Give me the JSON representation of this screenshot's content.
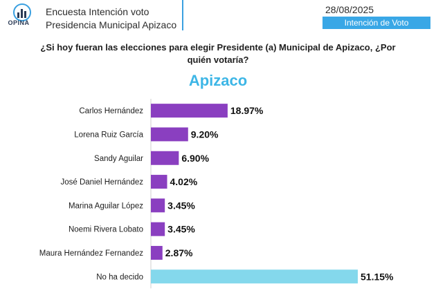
{
  "header": {
    "logo_text": "OPINA",
    "line1": "Encuesta Intención voto",
    "line2": "Presidencia Municipal Apizaco",
    "date": "28/08/2025",
    "badge": "Intención de Voto"
  },
  "question": "¿Si hoy fueran las elecciones para elegir Presidente (a) Municipal de Apizaco, ¿Por quién votaría?",
  "colors": {
    "accent": "#39a7e6",
    "bar_primary": "#8a3fc0",
    "bar_undecided": "#84d8ec"
  },
  "chart_data": {
    "type": "bar",
    "orientation": "horizontal",
    "title": "Apizaco",
    "categories": [
      "Carlos Hernández",
      "Lorena Ruiz García",
      "Sandy Aguilar",
      "José Daniel Hernández",
      "Marina Aguilar López",
      "Noemi Rivera Lobato",
      "Maura Hernández Fernandez",
      "No ha decido"
    ],
    "values": [
      18.97,
      9.2,
      6.9,
      4.02,
      3.45,
      3.45,
      2.87,
      51.15
    ],
    "labels": [
      "18.97%",
      "9.20%",
      "6.90%",
      "4.02%",
      "3.45%",
      "3.45%",
      "2.87%",
      "51.15%"
    ],
    "xlim": [
      0,
      55
    ],
    "grid": false,
    "legend": "none"
  }
}
